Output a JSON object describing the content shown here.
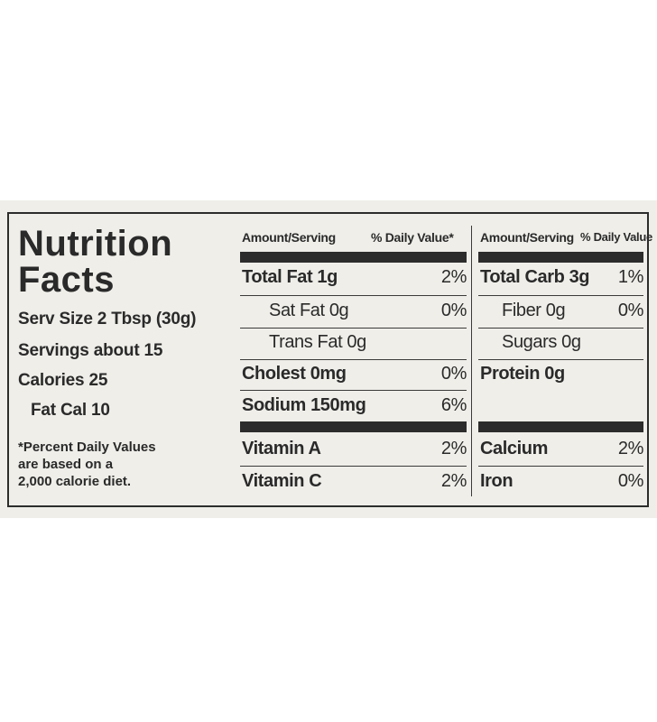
{
  "title_line1": "Nutrition",
  "title_line2": "Facts",
  "serving_size": "Serv Size 2 Tbsp (30g)",
  "servings": "Servings about 15",
  "calories": "Calories 25",
  "fat_cal": "Fat Cal 10",
  "footnote": "*Percent Daily Values\n are based on a\n 2,000 calorie diet.",
  "col1_headers": {
    "amount": "Amount/Serving",
    "dv": "% Daily Value*"
  },
  "col2_headers": {
    "amount": "Amount/Serving",
    "dv": "% Daily Value"
  },
  "col1_rows": [
    {
      "name": "Total Fat 1g",
      "dv": "2%"
    },
    {
      "name": "Sat Fat 0g",
      "dv": "0%"
    },
    {
      "name": "Trans Fat 0g",
      "dv": ""
    },
    {
      "name": "Cholest 0mg",
      "dv": "0%"
    },
    {
      "name": "Sodium 150mg",
      "dv": "6%"
    }
  ],
  "col2_rows": [
    {
      "name": "Total Carb 3g",
      "dv": "1%"
    },
    {
      "name": "Fiber 0g",
      "dv": "0%"
    },
    {
      "name": "Sugars 0g",
      "dv": ""
    },
    {
      "name": "Protein 0g",
      "dv": ""
    }
  ],
  "vitamins_left": [
    {
      "name": "Vitamin A",
      "dv": "2%"
    },
    {
      "name": "Vitamin C",
      "dv": "2%"
    }
  ],
  "vitamins_right": [
    {
      "name": "Calcium",
      "dv": "2%"
    },
    {
      "name": "Iron",
      "dv": "0%"
    }
  ]
}
